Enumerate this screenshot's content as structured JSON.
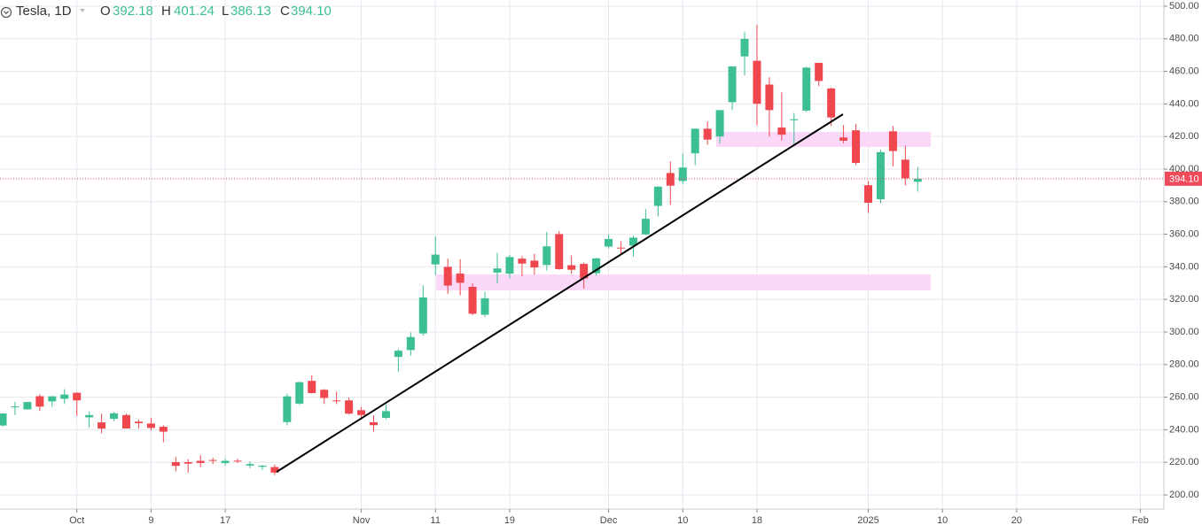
{
  "chart_data": {
    "type": "candlestick",
    "title": "Tesla, 1D",
    "legend": [
      {
        "key": "O",
        "label": "392.18"
      },
      {
        "key": "H",
        "label": "401.24"
      },
      {
        "key": "L",
        "label": "386.13"
      },
      {
        "key": "C",
        "label": "394.10"
      }
    ],
    "up_color": "#3cbf95",
    "down_color": "#f0474e",
    "categories": [
      null,
      null,
      null,
      null,
      null,
      null,
      "Oct",
      null,
      null,
      null,
      null,
      null,
      "9",
      null,
      null,
      null,
      null,
      null,
      "17",
      null,
      null,
      null,
      null,
      null,
      null,
      null,
      null,
      null,
      null,
      "Nov",
      null,
      null,
      null,
      null,
      null,
      "11",
      null,
      null,
      null,
      null,
      null,
      "19",
      null,
      null,
      null,
      null,
      null,
      null,
      null,
      "Dec",
      null,
      null,
      null,
      null,
      null,
      "10",
      null,
      null,
      null,
      null,
      null,
      "18",
      null,
      null,
      null,
      null,
      null,
      null,
      null,
      null,
      "2025",
      null,
      null,
      null,
      null,
      null,
      "10",
      null,
      null,
      null,
      null,
      null,
      "20",
      null,
      null,
      null,
      null,
      null,
      null,
      null,
      null,
      null,
      "Feb",
      null
    ],
    "open": [
      242.6,
      254.1,
      252.5,
      260.6,
      257.4,
      259.0,
      262.7,
      247.6,
      244.5,
      246.7,
      249.0,
      244.9,
      243.8,
      241.8,
      220.1,
      220.1,
      220.9,
      221.4,
      219.5,
      221.0,
      218.0,
      217.3,
      217.1,
      244.7,
      256.0,
      270.0,
      264.5,
      258.0,
      258.0,
      252.0,
      244.6,
      247.3,
      284.7,
      288.9,
      299.1,
      341.5,
      340.0,
      335.9,
      327.7,
      310.6,
      336.5,
      335.8,
      345.0,
      343.8,
      341.1,
      360.1,
      341.0,
      341.8,
      336.1,
      352.4,
      351.8,
      353.0,
      359.9,
      377.4,
      397.6,
      392.7,
      409.7,
      424.8,
      420.0,
      441.1,
      469.2,
      466.5,
      451.9,
      425.5,
      430.0,
      435.9,
      465.2,
      449.5,
      419.4,
      423.8,
      390.1,
      381.5,
      423.2,
      405.8,
      392.18,
      null,
      null,
      null,
      null,
      null,
      null,
      null,
      null,
      null,
      null,
      null,
      null,
      null,
      null,
      null,
      null,
      null,
      null,
      null
    ],
    "high": [
      250.0,
      257.2,
      257.1,
      261.8,
      260.7,
      264.9,
      263.0,
      251.2,
      249.8,
      250.9,
      249.8,
      246.2,
      247.4,
      242.8,
      223.3,
      221.9,
      224.3,
      222.8,
      222.1,
      222.3,
      220.5,
      218.2,
      218.7,
      262.1,
      269.5,
      273.5,
      264.9,
      263.4,
      259.8,
      254.0,
      248.9,
      255.3,
      289.6,
      299.8,
      328.7,
      358.6,
      345.0,
      344.6,
      329.9,
      324.7,
      348.5,
      347.4,
      346.6,
      348.0,
      361.5,
      361.9,
      347.0,
      342.6,
      345.5,
      360.0,
      355.7,
      359.1,
      375.4,
      389.5,
      404.8,
      409.7,
      424.9,
      429.3,
      436.3,
      463.2,
      484.0,
      488.5,
      456.4,
      447.1,
      434.5,
      462.8,
      465.3,
      450.0,
      427.0,
      427.9,
      392.7,
      411.9,
      426.4,
      414.3,
      401.24,
      null,
      null,
      null,
      null,
      null,
      null,
      null,
      null,
      null,
      null,
      null,
      null,
      null,
      null,
      null,
      null,
      null,
      null,
      null
    ],
    "low": [
      241.9,
      249.0,
      252.3,
      251.5,
      254.1,
      255.8,
      248.5,
      241.5,
      237.8,
      245.3,
      240.7,
      240.6,
      239.5,
      232.3,
      214.4,
      213.7,
      217.1,
      218.9,
      217.9,
      219.6,
      216.4,
      215.3,
      212.1,
      242.7,
      255.3,
      262.2,
      255.8,
      255.8,
      249.3,
      246.2,
      238.9,
      246.5,
      275.6,
      285.5,
      297.7,
      335.0,
      323.3,
      322.5,
      310.4,
      309.2,
      330.0,
      332.8,
      334.3,
      335.3,
      337.7,
      338.2,
      335.7,
      326.6,
      334.6,
      351.2,
      348.2,
      346.3,
      359.5,
      370.8,
      378.0,
      390.9,
      402.4,
      415.0,
      415.7,
      436.2,
      457.5,
      427.0,
      420.0,
      417.6,
      415.4,
      435.1,
      451.0,
      426.5,
      415.8,
      402.5,
      373.0,
      379.1,
      401.7,
      390.0,
      386.13,
      null,
      null,
      null,
      null,
      null,
      null,
      null,
      null,
      null,
      null,
      null,
      null,
      null,
      null,
      null,
      null,
      null,
      null,
      null
    ],
    "close": [
      250.0,
      254.3,
      257.0,
      254.2,
      260.5,
      261.6,
      258.0,
      249.0,
      240.7,
      250.1,
      240.8,
      244.0,
      241.1,
      238.8,
      217.8,
      219.2,
      219.6,
      221.3,
      220.9,
      220.7,
      218.9,
      218.0,
      213.7,
      260.5,
      269.2,
      262.5,
      259.5,
      257.6,
      249.9,
      249.0,
      242.8,
      251.4,
      288.5,
      296.9,
      321.2,
      347.5,
      328.5,
      330.2,
      311.2,
      320.7,
      339.0,
      346.0,
      342.0,
      339.6,
      352.6,
      338.6,
      338.2,
      332.9,
      345.2,
      357.1,
      351.4,
      357.9,
      369.5,
      389.2,
      389.8,
      401.0,
      424.8,
      418.1,
      436.2,
      463.0,
      479.9,
      440.1,
      436.2,
      421.1,
      430.6,
      462.3,
      454.1,
      431.7,
      417.4,
      403.8,
      379.3,
      410.4,
      411.1,
      394.4,
      394.1,
      null,
      null,
      null,
      null,
      null,
      null,
      null,
      null,
      null,
      null,
      null,
      null,
      null,
      null,
      null,
      null,
      null,
      null,
      null
    ],
    "ylim": [
      191.3,
      503.8
    ],
    "yticks": [
      {
        "value": 200,
        "label": "200.00"
      },
      {
        "value": 220,
        "label": "220.00"
      },
      {
        "value": 240,
        "label": "240.00"
      },
      {
        "value": 260,
        "label": "260.00"
      },
      {
        "value": 280,
        "label": "280.00"
      },
      {
        "value": 300,
        "label": "300.00"
      },
      {
        "value": 320,
        "label": "320.00"
      },
      {
        "value": 340,
        "label": "340.00"
      },
      {
        "value": 360,
        "label": "360.00"
      },
      {
        "value": 380,
        "label": "380.00"
      },
      {
        "value": 400,
        "label": "400.00"
      },
      {
        "value": 420,
        "label": "420.00"
      },
      {
        "value": 440,
        "label": "440.00"
      },
      {
        "value": 460,
        "label": "460.00"
      },
      {
        "value": 480,
        "label": "480.00"
      },
      {
        "value": 500,
        "label": "500.00"
      }
    ],
    "grid": true
  }
}
